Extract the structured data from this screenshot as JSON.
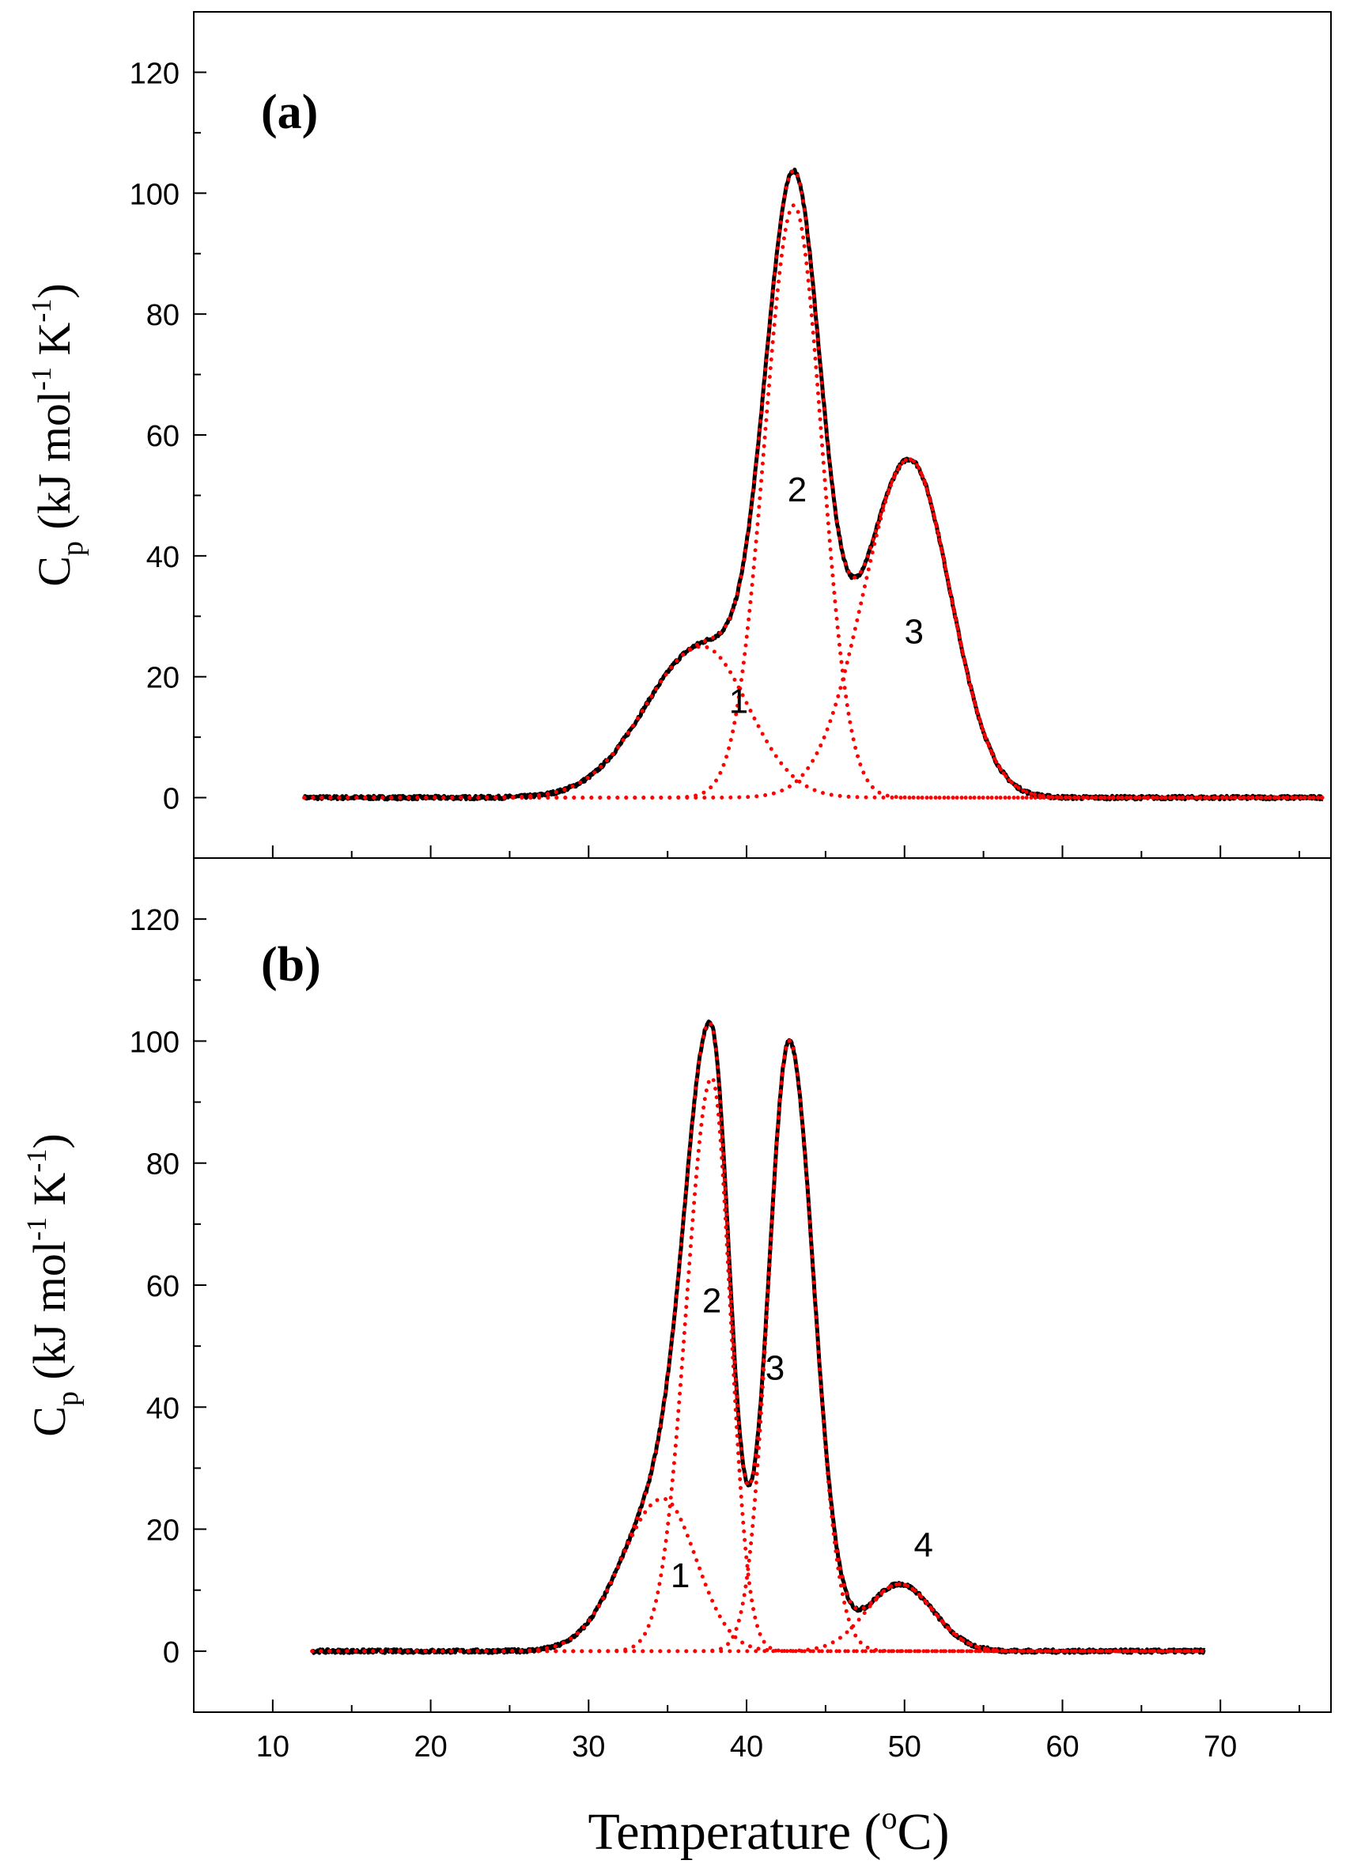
{
  "chart_data": [
    {
      "type": "line",
      "panel_label": "(a)",
      "title": "",
      "ylabel": {
        "main": "C",
        "sub": "p",
        "unit_open": " (kJ mol",
        "sup1": "-1",
        "unit_mid": " K",
        "sup2": "-1",
        "unit_close": ")"
      },
      "xlim": [
        5,
        77
      ],
      "ylim": [
        -10,
        130
      ],
      "yticks": [
        0,
        20,
        40,
        60,
        80,
        100,
        120
      ],
      "yticklabels": [
        "0",
        "20",
        "40",
        "60",
        "80",
        "100",
        "120"
      ],
      "data_range": [
        12,
        76.5
      ],
      "series": [
        {
          "name": "experimental",
          "style": "solid",
          "color": "#000000",
          "sum_of_components": true
        },
        {
          "name": "1",
          "style": "dotted",
          "color": "#ff0000",
          "center": 37.2,
          "peak": 25,
          "sigma_left": 3.6,
          "sigma_right": 2.9
        },
        {
          "name": "2",
          "style": "dotted",
          "color": "#ff0000",
          "center": 43.0,
          "peak": 98,
          "sigma_left": 1.85,
          "sigma_right": 1.75
        },
        {
          "name": "3",
          "style": "dotted",
          "color": "#ff0000",
          "center": 50.3,
          "peak": 56,
          "sigma_left": 2.9,
          "sigma_right": 2.6
        }
      ],
      "annotations": [
        {
          "text": "1",
          "x": 39.5,
          "y": 14
        },
        {
          "text": "2",
          "x": 43.2,
          "y": 49
        },
        {
          "text": "3",
          "x": 50.6,
          "y": 25.5
        }
      ]
    },
    {
      "type": "line",
      "panel_label": "(b)",
      "title": "",
      "ylabel": {
        "main": "C",
        "sub": "p",
        "unit_open": " (kJ mol",
        "sup1": "-1",
        "unit_mid": " K",
        "sup2": "-1",
        "unit_close": ")"
      },
      "xlim": [
        5,
        77
      ],
      "ylim": [
        -10,
        130
      ],
      "yticks": [
        0,
        20,
        40,
        60,
        80,
        100,
        120
      ],
      "yticklabels": [
        "0",
        "20",
        "40",
        "60",
        "80",
        "100",
        "120"
      ],
      "data_range": [
        12.5,
        69
      ],
      "series": [
        {
          "name": "experimental",
          "style": "solid",
          "color": "#000000",
          "sum_of_components": true
        },
        {
          "name": "1",
          "style": "dotted",
          "color": "#ff0000",
          "center": 34.7,
          "peak": 25,
          "sigma_left": 2.6,
          "sigma_right": 2.1
        },
        {
          "name": "2",
          "style": "dotted",
          "color": "#ff0000",
          "center": 37.8,
          "peak": 94,
          "sigma_left": 1.6,
          "sigma_right": 1.15
        },
        {
          "name": "3",
          "style": "dotted",
          "color": "#ff0000",
          "center": 42.7,
          "peak": 100,
          "sigma_left": 1.3,
          "sigma_right": 1.55
        },
        {
          "name": "4",
          "style": "dotted",
          "color": "#ff0000",
          "center": 49.7,
          "peak": 11,
          "sigma_left": 2.1,
          "sigma_right": 2.1
        }
      ],
      "annotations": [
        {
          "text": "1",
          "x": 35.8,
          "y": 10.5
        },
        {
          "text": "2",
          "x": 37.8,
          "y": 55.5
        },
        {
          "text": "3",
          "x": 41.8,
          "y": 44.5
        },
        {
          "text": "4",
          "x": 51.2,
          "y": 15.5
        }
      ]
    }
  ],
  "x_axis": {
    "xlabel": {
      "main": "Temperature (",
      "sup": "o",
      "end": "C)"
    },
    "xticks": [
      10,
      20,
      30,
      40,
      50,
      60,
      70
    ],
    "xticklabels": [
      "10",
      "20",
      "30",
      "40",
      "50",
      "60",
      "70"
    ]
  }
}
